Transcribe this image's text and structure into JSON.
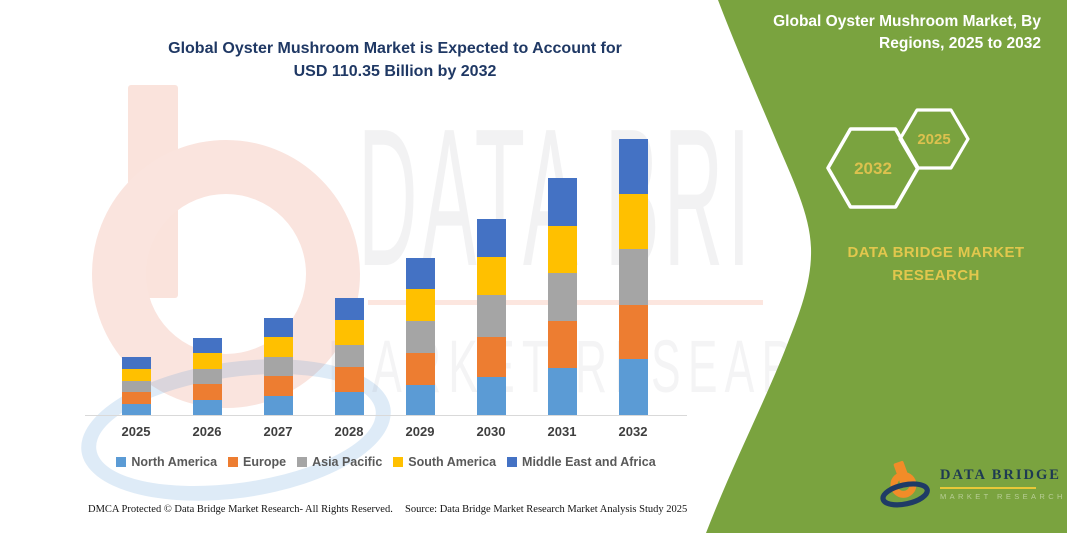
{
  "chart": {
    "title_line1": "Global Oyster Mushroom Market is Expected to Account for",
    "title_line2": "USD 110.35 Billion by 2032"
  },
  "chart_data": {
    "type": "bar",
    "stacked": true,
    "title": "Global Oyster Mushroom Market is Expected to Account for USD 110.35 Billion by 2032",
    "unit": "USD Billion",
    "categories": [
      "2025",
      "2026",
      "2027",
      "2028",
      "2029",
      "2030",
      "2031",
      "2032"
    ],
    "series": [
      {
        "name": "North America",
        "color": "#5B9BD5",
        "values": [
          4.5,
          6.1,
          7.7,
          9.3,
          12.0,
          15.3,
          18.7,
          22.4
        ]
      },
      {
        "name": "Europe",
        "color": "#ED7D31",
        "values": [
          4.6,
          6.2,
          7.8,
          10.1,
          12.7,
          16.0,
          18.9,
          21.6
        ]
      },
      {
        "name": "Asia Pacific",
        "color": "#A5A5A5",
        "values": [
          4.6,
          6.2,
          7.8,
          8.7,
          12.9,
          16.9,
          19.1,
          22.4
        ]
      },
      {
        "name": "South America",
        "color": "#FFC000",
        "values": [
          4.8,
          6.2,
          7.8,
          9.8,
          12.7,
          15.1,
          18.9,
          21.9
        ]
      },
      {
        "name": "Middle East and Africa",
        "color": "#4472C4",
        "values": [
          4.8,
          6.2,
          7.8,
          9.0,
          12.4,
          15.3,
          19.1,
          22.05
        ]
      }
    ],
    "totals": [
      23.3,
      30.9,
      38.9,
      46.9,
      62.7,
      78.6,
      94.7,
      110.35
    ],
    "xlabel": "",
    "ylabel": "",
    "ylim": [
      0,
      115
    ],
    "grid": false,
    "y_axis_visible": false,
    "legend_position": "bottom"
  },
  "side_panel": {
    "background_color": "#7AA33F",
    "title_line1": "Global Oyster Mushroom Market, By",
    "title_line2": "Regions, 2025 to 2032",
    "hexagon_year_left": "2032",
    "hexagon_year_right": "2025",
    "brand_line1": "DATA BRIDGE MARKET",
    "brand_line2": "RESEARCH",
    "accent_color": "#E2C74D"
  },
  "brand_logo": {
    "title": "DATA BRIDGE",
    "subtitle": "MARKET RESEARCH"
  },
  "watermark": {
    "line1": "DATA BRI",
    "line2": "MARKET RESEARCH"
  },
  "footer": {
    "left": "DMCA Protected © Data Bridge Market Research-  All Rights Reserved.",
    "right": "Source: Data Bridge Market Research  Market Analysis Study 2025"
  }
}
